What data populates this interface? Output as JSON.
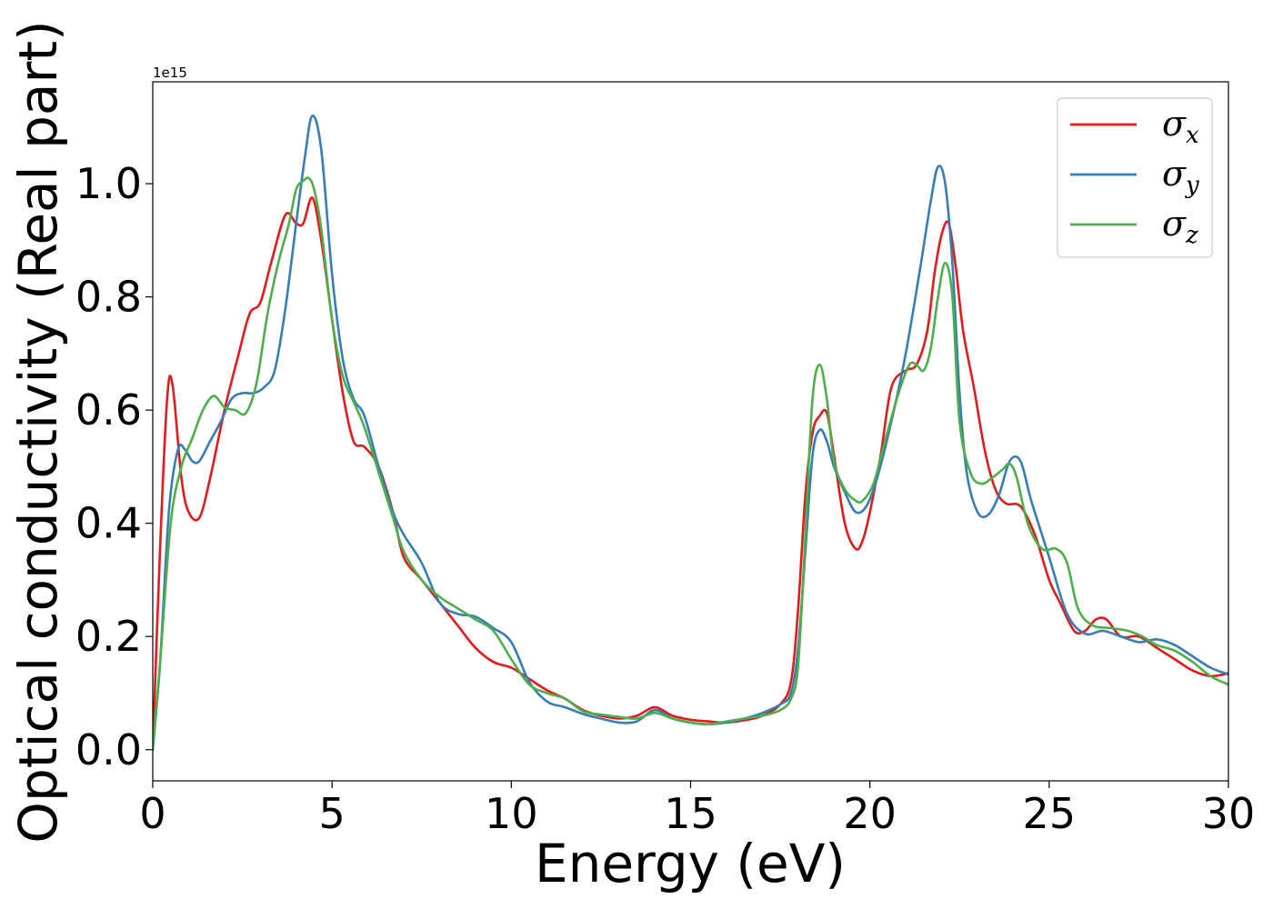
{
  "chart_data": {
    "type": "line",
    "title": "",
    "xlabel": "Energy (eV)",
    "ylabel": "Optical conductivity (Real part)",
    "y_offset_label": "1e15",
    "xlim": [
      0,
      30
    ],
    "ylim": [
      -0.055,
      1.18
    ],
    "xticks": [
      0,
      5,
      10,
      15,
      20,
      25,
      30
    ],
    "xtick_labels": [
      "0",
      "5",
      "10",
      "15",
      "20",
      "25",
      "30"
    ],
    "yticks": [
      0.0,
      0.2,
      0.4,
      0.6,
      0.8,
      1.0
    ],
    "ytick_labels": [
      "0.0",
      "0.2",
      "0.4",
      "0.6",
      "0.8",
      "1.0"
    ],
    "grid": false,
    "legend_position": "top-right",
    "series": [
      {
        "name": "σ",
        "name_sub": "x",
        "color": "#e41a1c",
        "x": [
          0,
          0.2,
          0.4,
          0.55,
          0.8,
          1.0,
          1.3,
          1.6,
          2.0,
          2.4,
          2.7,
          3.0,
          3.3,
          3.7,
          4.0,
          4.2,
          4.45,
          4.7,
          5.0,
          5.3,
          5.6,
          5.9,
          6.3,
          6.7,
          7.0,
          7.5,
          8.0,
          8.5,
          9.0,
          9.5,
          10.0,
          10.5,
          11.0,
          11.5,
          12.0,
          12.5,
          13.0,
          13.5,
          14.0,
          14.5,
          15.0,
          15.5,
          16.0,
          16.5,
          17.0,
          17.5,
          17.8,
          18.0,
          18.2,
          18.4,
          18.6,
          18.8,
          19.0,
          19.3,
          19.6,
          19.8,
          20.0,
          20.3,
          20.6,
          21.0,
          21.3,
          21.6,
          21.8,
          22.0,
          22.2,
          22.4,
          22.6,
          22.9,
          23.2,
          23.5,
          23.8,
          24.2,
          24.6,
          25.0,
          25.3,
          25.7,
          26.0,
          26.3,
          26.6,
          27.0,
          27.5,
          28.0,
          28.5,
          29.0,
          29.5,
          30.0
        ],
        "y": [
          0.0,
          0.35,
          0.62,
          0.645,
          0.48,
          0.42,
          0.41,
          0.48,
          0.6,
          0.7,
          0.77,
          0.79,
          0.86,
          0.945,
          0.93,
          0.93,
          0.975,
          0.9,
          0.76,
          0.63,
          0.545,
          0.535,
          0.5,
          0.42,
          0.34,
          0.3,
          0.26,
          0.22,
          0.18,
          0.155,
          0.145,
          0.125,
          0.105,
          0.09,
          0.07,
          0.06,
          0.055,
          0.06,
          0.075,
          0.06,
          0.053,
          0.05,
          0.048,
          0.052,
          0.06,
          0.08,
          0.12,
          0.25,
          0.45,
          0.56,
          0.59,
          0.595,
          0.52,
          0.4,
          0.355,
          0.37,
          0.42,
          0.52,
          0.64,
          0.67,
          0.68,
          0.74,
          0.84,
          0.91,
          0.93,
          0.85,
          0.74,
          0.64,
          0.53,
          0.46,
          0.435,
          0.43,
          0.38,
          0.3,
          0.26,
          0.21,
          0.21,
          0.23,
          0.23,
          0.2,
          0.2,
          0.18,
          0.16,
          0.14,
          0.13,
          0.135
        ]
      },
      {
        "name": "σ",
        "name_sub": "y",
        "color": "#377eb8",
        "x": [
          0,
          0.2,
          0.45,
          0.7,
          0.9,
          1.1,
          1.3,
          1.6,
          1.9,
          2.2,
          2.5,
          2.8,
          3.1,
          3.4,
          3.7,
          4.0,
          4.25,
          4.45,
          4.7,
          5.0,
          5.3,
          5.6,
          5.9,
          6.3,
          6.7,
          7.0,
          7.5,
          8.0,
          8.5,
          9.0,
          9.5,
          10.0,
          10.5,
          11.0,
          11.5,
          12.0,
          12.5,
          13.0,
          13.5,
          14.0,
          14.5,
          15.0,
          15.5,
          16.0,
          16.5,
          17.0,
          17.5,
          17.8,
          18.0,
          18.2,
          18.4,
          18.6,
          18.8,
          19.0,
          19.3,
          19.6,
          19.9,
          20.2,
          20.6,
          21.0,
          21.4,
          21.7,
          21.9,
          22.1,
          22.3,
          22.5,
          22.7,
          23.0,
          23.3,
          23.6,
          23.9,
          24.2,
          24.5,
          25.0,
          25.5,
          26.0,
          26.5,
          27.0,
          27.5,
          28.0,
          28.5,
          29.0,
          29.5,
          30.0
        ],
        "y": [
          0.0,
          0.15,
          0.42,
          0.53,
          0.53,
          0.51,
          0.51,
          0.545,
          0.58,
          0.62,
          0.63,
          0.63,
          0.64,
          0.67,
          0.78,
          0.93,
          1.05,
          1.12,
          1.06,
          0.84,
          0.69,
          0.62,
          0.59,
          0.5,
          0.42,
          0.38,
          0.33,
          0.26,
          0.24,
          0.235,
          0.215,
          0.19,
          0.12,
          0.085,
          0.075,
          0.063,
          0.055,
          0.048,
          0.05,
          0.07,
          0.055,
          0.048,
          0.045,
          0.048,
          0.055,
          0.065,
          0.08,
          0.1,
          0.18,
          0.35,
          0.52,
          0.565,
          0.545,
          0.5,
          0.455,
          0.42,
          0.43,
          0.48,
          0.58,
          0.7,
          0.85,
          0.97,
          1.03,
          1.0,
          0.86,
          0.63,
          0.49,
          0.42,
          0.415,
          0.45,
          0.51,
          0.51,
          0.44,
          0.34,
          0.24,
          0.205,
          0.21,
          0.2,
          0.19,
          0.195,
          0.185,
          0.165,
          0.145,
          0.133
        ]
      },
      {
        "name": "σ",
        "name_sub": "z",
        "color": "#4daf4a",
        "x": [
          0,
          0.2,
          0.5,
          0.8,
          1.1,
          1.4,
          1.7,
          2.0,
          2.3,
          2.6,
          2.9,
          3.2,
          3.5,
          3.8,
          4.0,
          4.2,
          4.35,
          4.5,
          4.7,
          5.0,
          5.3,
          5.6,
          5.9,
          6.3,
          6.7,
          7.0,
          7.5,
          8.0,
          8.5,
          9.0,
          9.5,
          10.0,
          10.5,
          11.0,
          11.5,
          12.0,
          12.5,
          13.0,
          13.5,
          14.0,
          14.5,
          15.0,
          15.5,
          16.0,
          16.5,
          17.0,
          17.5,
          17.8,
          18.0,
          18.2,
          18.4,
          18.6,
          18.8,
          19.0,
          19.3,
          19.6,
          19.8,
          20.1,
          20.4,
          20.8,
          21.1,
          21.3,
          21.5,
          21.7,
          21.9,
          22.1,
          22.3,
          22.5,
          22.8,
          23.1,
          23.4,
          23.7,
          23.9,
          24.1,
          24.4,
          24.8,
          25.2,
          25.5,
          25.8,
          26.2,
          26.7,
          27.2,
          27.6,
          28.0,
          28.5,
          29.0,
          29.5,
          30.0
        ],
        "y": [
          0.0,
          0.15,
          0.4,
          0.5,
          0.55,
          0.6,
          0.625,
          0.605,
          0.6,
          0.595,
          0.65,
          0.77,
          0.86,
          0.93,
          0.99,
          1.005,
          1.01,
          0.99,
          0.92,
          0.76,
          0.66,
          0.615,
          0.57,
          0.49,
          0.41,
          0.35,
          0.3,
          0.27,
          0.25,
          0.23,
          0.21,
          0.16,
          0.115,
          0.1,
          0.09,
          0.068,
          0.062,
          0.058,
          0.055,
          0.065,
          0.055,
          0.048,
          0.045,
          0.05,
          0.055,
          0.06,
          0.07,
          0.09,
          0.15,
          0.38,
          0.62,
          0.68,
          0.62,
          0.51,
          0.46,
          0.44,
          0.44,
          0.47,
          0.54,
          0.63,
          0.68,
          0.68,
          0.67,
          0.71,
          0.8,
          0.86,
          0.8,
          0.58,
          0.49,
          0.47,
          0.48,
          0.495,
          0.505,
          0.48,
          0.4,
          0.355,
          0.355,
          0.33,
          0.25,
          0.22,
          0.215,
          0.21,
          0.2,
          0.185,
          0.175,
          0.155,
          0.13,
          0.115
        ]
      }
    ]
  }
}
